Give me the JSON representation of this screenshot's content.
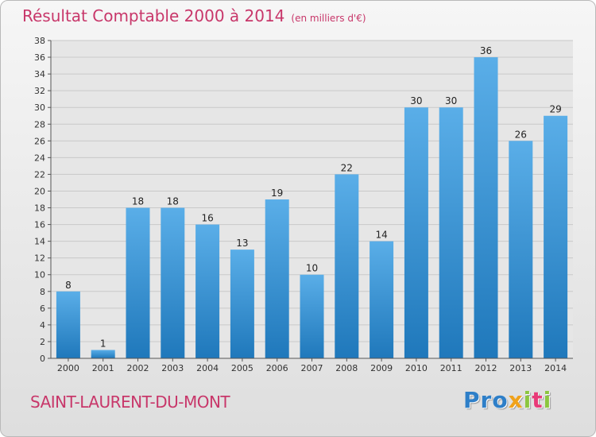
{
  "header": {
    "title": "Résultat Comptable 2000 à 2014",
    "subtitle": "(en milliers d'€)"
  },
  "footer": {
    "commune": "SAINT-LAURENT-DU-MONT",
    "brand_letters": [
      "P",
      "r",
      "o",
      "x",
      "i",
      "t",
      "i"
    ]
  },
  "colors": {
    "title": "#c8376a",
    "bar_light": "#5aaee8",
    "bar_dark": "#1f78bb",
    "grid": "#c9c9c9",
    "brand": [
      "#2e7fc8",
      "#2e7fc8",
      "#2e7fc8",
      "#f0a21a",
      "#8cc63f",
      "#e83a78",
      "#8cc63f"
    ]
  },
  "chart_data": {
    "type": "bar",
    "title": "Résultat Comptable 2000 à 2014",
    "subtitle": "(en milliers d'€)",
    "xlabel": "",
    "ylabel": "",
    "categories": [
      "2000",
      "2001",
      "2002",
      "2003",
      "2004",
      "2005",
      "2006",
      "2007",
      "2008",
      "2009",
      "2010",
      "2011",
      "2012",
      "2013",
      "2014"
    ],
    "values": [
      8,
      1,
      18,
      18,
      16,
      13,
      19,
      10,
      22,
      14,
      30,
      30,
      36,
      26,
      29
    ],
    "ylim": [
      0,
      38
    ],
    "yticks": [
      0,
      2,
      4,
      6,
      8,
      10,
      12,
      14,
      16,
      18,
      20,
      22,
      24,
      26,
      28,
      30,
      32,
      34,
      36,
      38
    ],
    "grid": true,
    "data_labels": true
  }
}
